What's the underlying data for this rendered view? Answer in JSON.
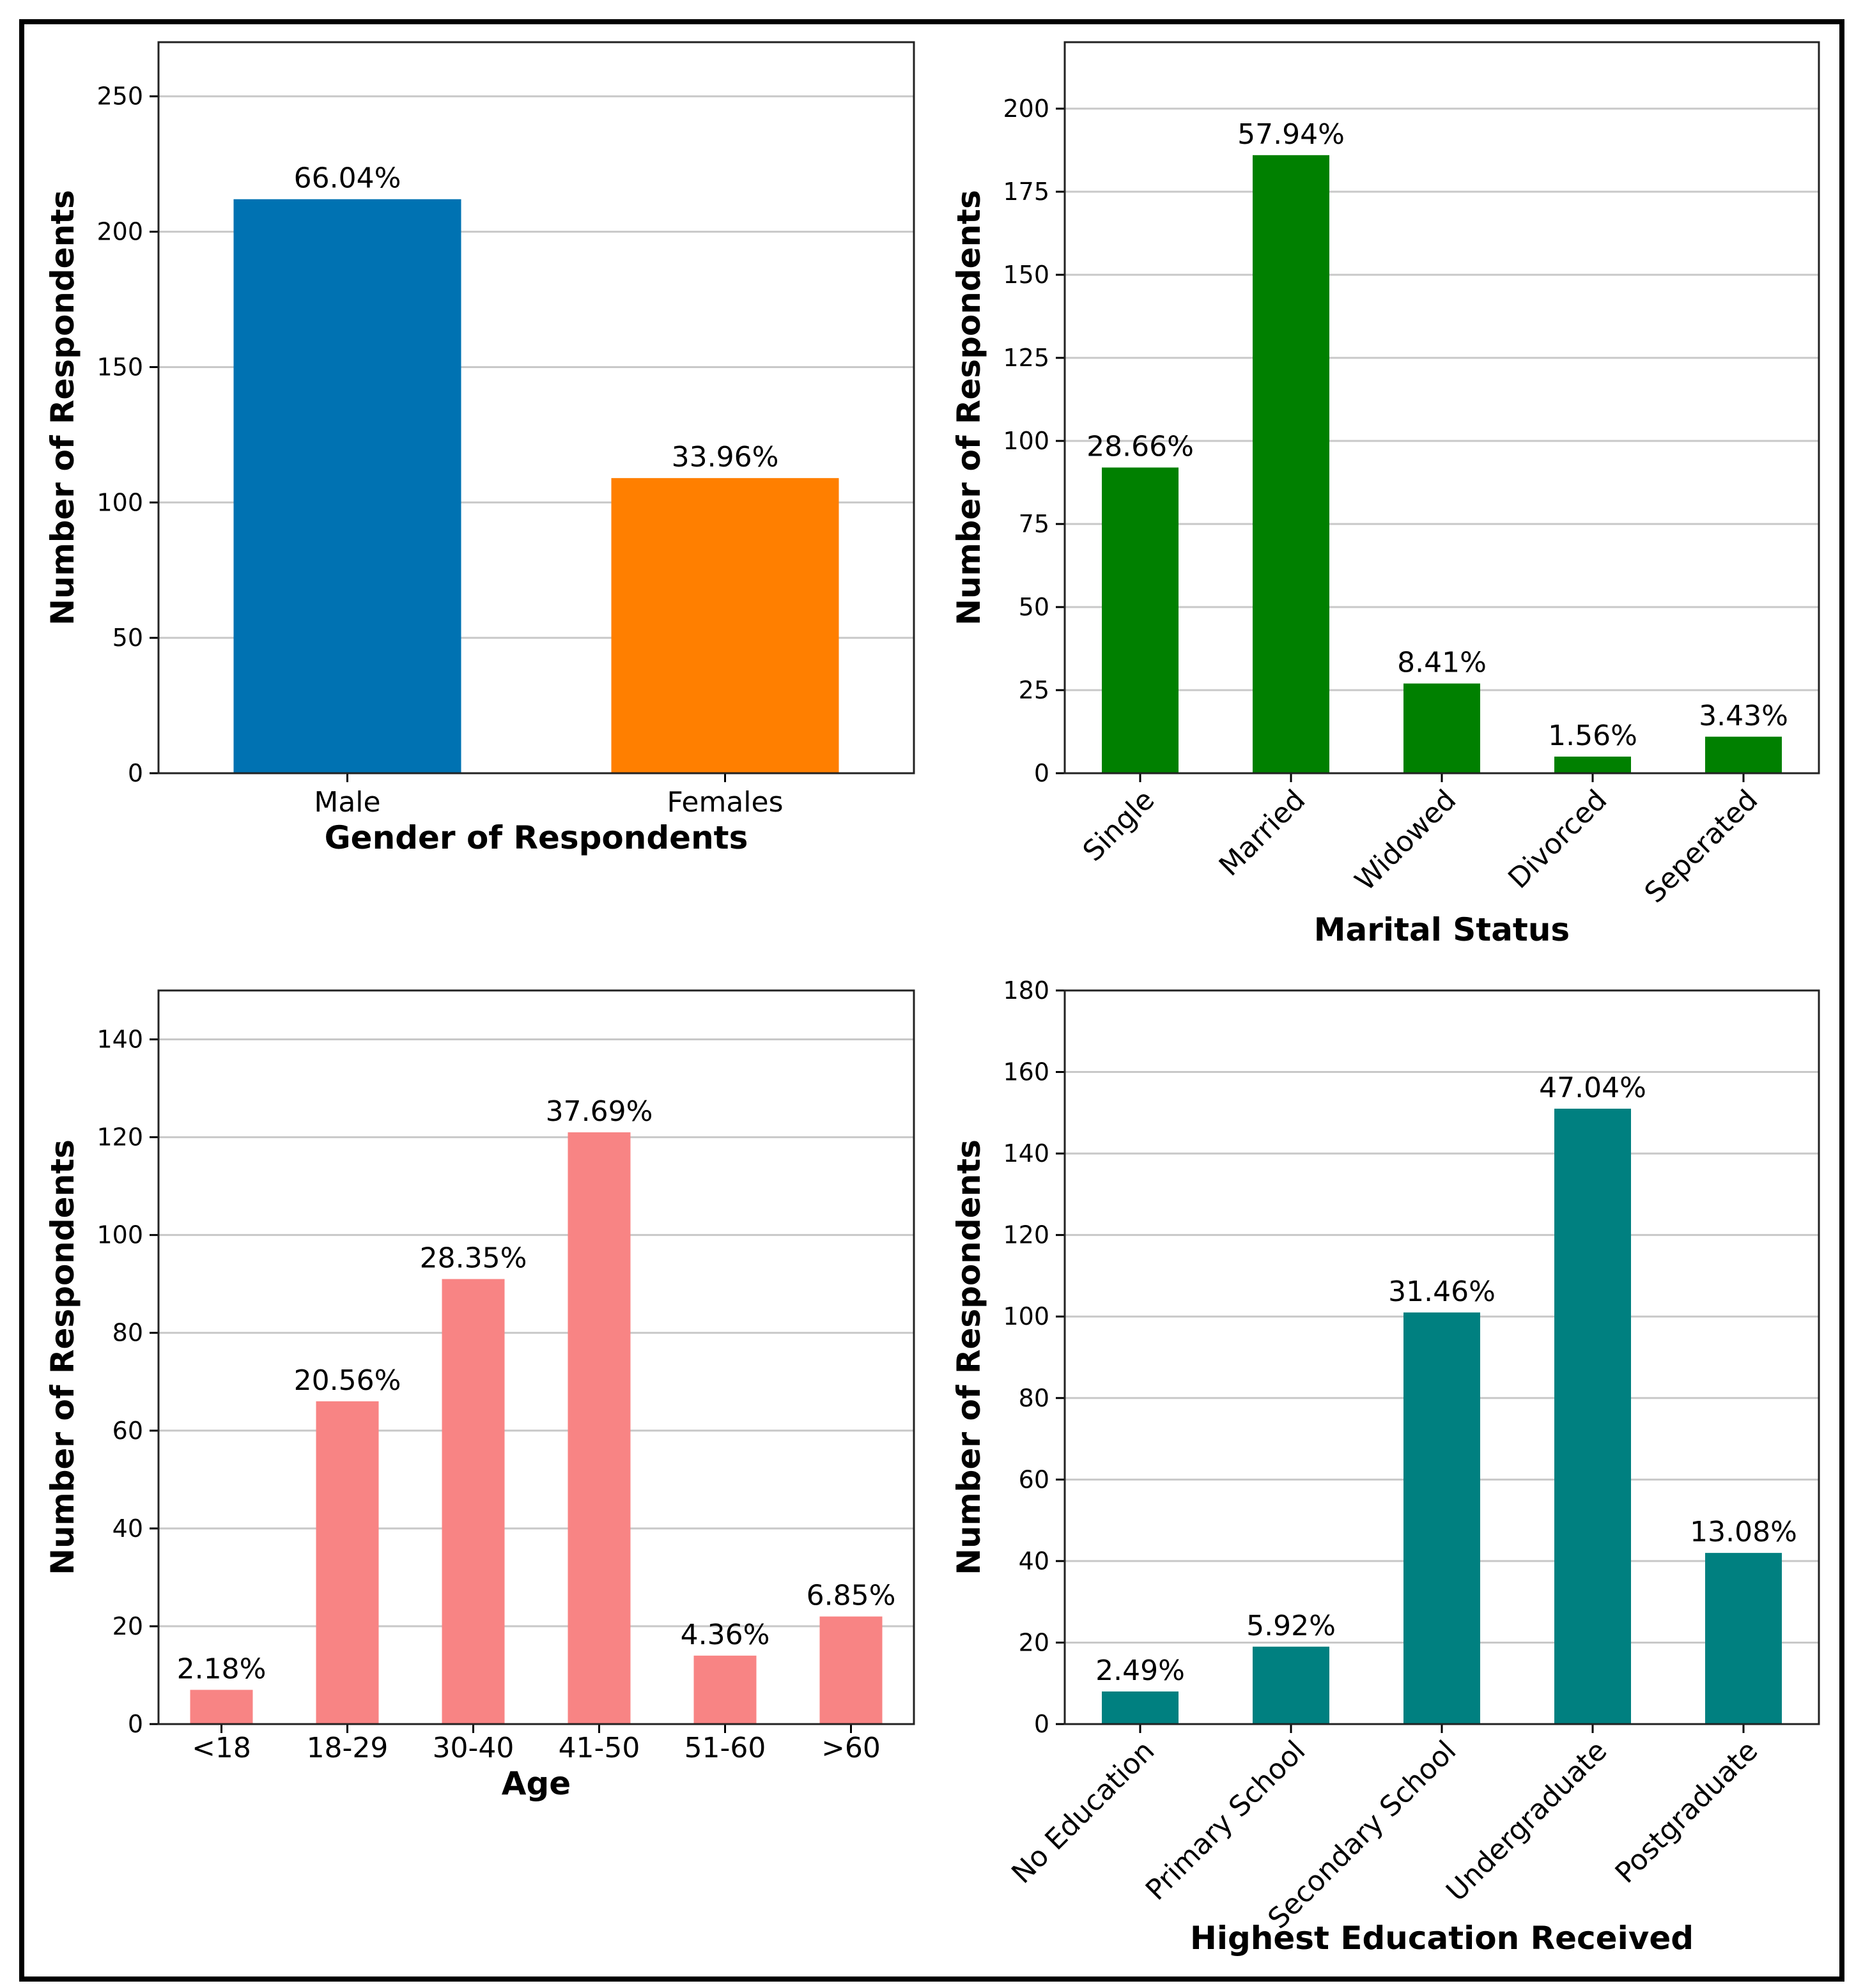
{
  "chart_data": [
    {
      "type": "bar",
      "xlabel": "Gender of Respondents",
      "ylabel": "Number of Respondents",
      "ylim": [
        0,
        270
      ],
      "yticks": [
        0,
        50,
        100,
        150,
        200,
        250
      ],
      "categories": [
        "Male",
        "Females"
      ],
      "values": [
        212,
        109
      ],
      "value_labels": [
        "66.04%",
        "33.96%"
      ],
      "colors": [
        "#0072b2",
        "#ff7f00"
      ],
      "rotate_labels": false,
      "grid": true
    },
    {
      "type": "bar",
      "xlabel": "Marital Status",
      "ylabel": "Number of Respondents",
      "ylim": [
        0,
        220
      ],
      "yticks": [
        0,
        25,
        50,
        75,
        100,
        125,
        150,
        175,
        200
      ],
      "categories": [
        "Single",
        "Married",
        "Widowed",
        "Divorced",
        "Seperated"
      ],
      "values": [
        92,
        186,
        27,
        5,
        11
      ],
      "value_labels": [
        "28.66%",
        "57.94%",
        "8.41%",
        "1.56%",
        "3.43%"
      ],
      "colors": [
        "#008000"
      ],
      "rotate_labels": true,
      "grid": true
    },
    {
      "type": "bar",
      "xlabel": "Age",
      "ylabel": "Number of Respondents",
      "ylim": [
        0,
        150
      ],
      "yticks": [
        0,
        20,
        40,
        60,
        80,
        100,
        120,
        140
      ],
      "categories": [
        "<18",
        "18-29",
        "30-40",
        "41-50",
        "51-60",
        ">60"
      ],
      "values": [
        7,
        66,
        91,
        121,
        14,
        22
      ],
      "value_labels": [
        "2.18%",
        "20.56%",
        "28.35%",
        "37.69%",
        "4.36%",
        "6.85%"
      ],
      "colors": [
        "#f88484"
      ],
      "rotate_labels": false,
      "grid": true
    },
    {
      "type": "bar",
      "xlabel": "Highest Education Received",
      "ylabel": "Number of Respondents",
      "ylim": [
        0,
        180
      ],
      "yticks": [
        0,
        20,
        40,
        60,
        80,
        100,
        120,
        140,
        160,
        180
      ],
      "categories": [
        "No Education",
        "Primary School",
        "Secondary School",
        "Undergraduate",
        "Postgraduate"
      ],
      "values": [
        8,
        19,
        101,
        151,
        42
      ],
      "value_labels": [
        "2.49%",
        "5.92%",
        "31.46%",
        "47.04%",
        "13.08%"
      ],
      "colors": [
        "#008080"
      ],
      "rotate_labels": true,
      "grid": true
    }
  ]
}
